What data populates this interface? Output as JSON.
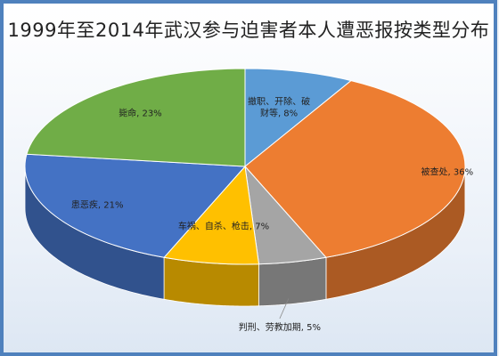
{
  "chart_data": {
    "type": "pie",
    "title": "1999年至2014年武汉参与迫害者本人遭恶报按类型分布",
    "slices": [
      {
        "label_lines": [
          "撤职、开除、破",
          "财等, 8%"
        ],
        "value": 8,
        "color": "#5b9bd5"
      },
      {
        "label_lines": [
          "被查处, 36%"
        ],
        "value": 36,
        "color": "#ed7d31"
      },
      {
        "label_lines": [
          "判刑、劳教加期, 5%"
        ],
        "value": 5,
        "color": "#a5a5a5"
      },
      {
        "label_lines": [
          "车祸、自杀、枪击, 7%"
        ],
        "value": 7,
        "color": "#ffc000"
      },
      {
        "label_lines": [
          "患恶疾, 21%"
        ],
        "value": 21,
        "color": "#4472c4"
      },
      {
        "label_lines": [
          "毙命, 23%"
        ],
        "value": 23,
        "color": "#70ad47"
      }
    ]
  }
}
